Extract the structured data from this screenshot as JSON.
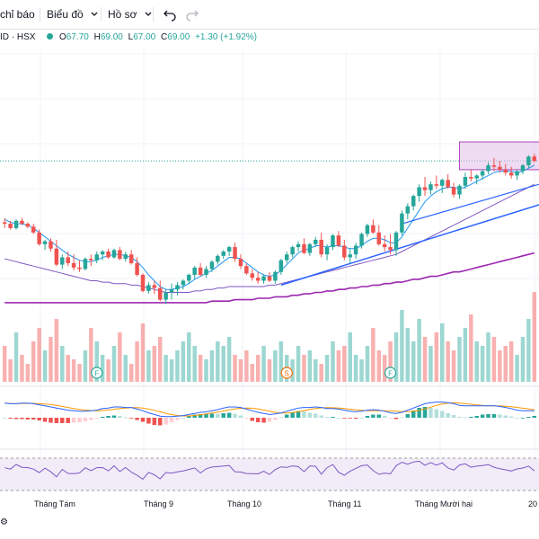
{
  "toolbar": {
    "indicators_label": "chỉ báo",
    "chart_template_label": "Biểu đồ",
    "profile_label": "Hồ sơ"
  },
  "legend": {
    "symbol": "ID · HSX",
    "open_label": "O",
    "open": "67.70",
    "high_label": "H",
    "high": "69.00",
    "low_label": "L",
    "low": "67.00",
    "close_label": "C",
    "close": "69.00",
    "change": "+1.30 (+1.92%)"
  },
  "colors": {
    "up": "#26a69a",
    "down": "#ef5350",
    "trendline": "#2962ff",
    "ma_fast": "#2196f3",
    "ma_slow": "#7e57c2",
    "ma_long": "#9c27b0",
    "macd_line": "#2962ff",
    "signal_line": "#ff9800",
    "rsi_line": "#7e57c2",
    "rsi_band": "#ede7f6"
  },
  "x_axis": [
    "Tháng Tám",
    "Tháng 9",
    "Tháng 10",
    "Tháng 11",
    "Tháng Mười hai",
    "20"
  ],
  "markers": [
    {
      "letter": "F",
      "color": "#26a69a"
    },
    {
      "letter": "S",
      "color": "#ff6d00"
    },
    {
      "letter": "F",
      "color": "#26a69a"
    }
  ],
  "chart_data": {
    "type": "candlestick",
    "candles": [
      [
        1.0,
        1.3,
        0.6,
        0.9
      ],
      [
        0.9,
        1.1,
        0.5,
        0.6
      ],
      [
        0.6,
        1.2,
        0.5,
        1.1
      ],
      [
        1.1,
        1.3,
        0.8,
        0.9
      ],
      [
        0.9,
        1.0,
        0.6,
        0.7
      ],
      [
        0.7,
        0.9,
        0.2,
        0.3
      ],
      [
        0.3,
        0.5,
        -0.6,
        -0.5
      ],
      [
        -0.5,
        -0.2,
        -0.9,
        -0.3
      ],
      [
        -0.3,
        -0.1,
        -1.0,
        -0.8
      ],
      [
        -0.8,
        -0.2,
        -2.0,
        -1.9
      ],
      [
        -1.9,
        -1.2,
        -2.2,
        -1.4
      ],
      [
        -1.4,
        -1.0,
        -2.0,
        -1.8
      ],
      [
        -1.8,
        -1.2,
        -2.3,
        -2.1
      ],
      [
        -2.1,
        -1.6,
        -2.4,
        -2.2
      ],
      [
        -2.2,
        -1.4,
        -2.3,
        -1.5
      ],
      [
        -1.5,
        -1.2,
        -2.0,
        -1.6
      ],
      [
        -1.6,
        -1.0,
        -1.8,
        -1.2
      ],
      [
        -1.2,
        -0.9,
        -1.6,
        -1.0
      ],
      [
        -1.0,
        -0.8,
        -1.5,
        -1.4
      ],
      [
        -1.4,
        -0.8,
        -1.5,
        -0.9
      ],
      [
        -0.9,
        -0.7,
        -1.6,
        -1.5
      ],
      [
        -1.5,
        -1.0,
        -1.7,
        -1.2
      ],
      [
        -1.2,
        -0.9,
        -1.9,
        -1.8
      ],
      [
        -1.8,
        -1.4,
        -2.7,
        -2.6
      ],
      [
        -2.6,
        -2.5,
        -3.8,
        -3.7
      ],
      [
        -3.7,
        -3.1,
        -3.9,
        -3.3
      ],
      [
        -3.3,
        -3.0,
        -3.9,
        -3.5
      ],
      [
        -3.5,
        -3.0,
        -4.4,
        -4.3
      ],
      [
        -4.3,
        -3.6,
        -4.6,
        -3.8
      ],
      [
        -3.8,
        -3.2,
        -4.3,
        -3.6
      ],
      [
        -3.6,
        -3.1,
        -4.0,
        -3.3
      ],
      [
        -3.3,
        -2.9,
        -3.6,
        -3.0
      ],
      [
        -3.0,
        -2.5,
        -3.2,
        -2.6
      ],
      [
        -2.6,
        -2.0,
        -2.9,
        -2.1
      ],
      [
        -2.1,
        -1.8,
        -2.7,
        -2.6
      ],
      [
        -2.6,
        -2.0,
        -2.8,
        -2.2
      ],
      [
        -2.2,
        -1.6,
        -2.4,
        -1.7
      ],
      [
        -1.7,
        -1.2,
        -1.9,
        -1.3
      ],
      [
        -1.3,
        -0.9,
        -1.5,
        -1.0
      ],
      [
        -1.0,
        -0.6,
        -1.3,
        -0.7
      ],
      [
        -0.7,
        -0.4,
        -1.7,
        -1.5
      ],
      [
        -1.5,
        -1.2,
        -2.2,
        -2.0
      ],
      [
        -2.0,
        -1.8,
        -2.6,
        -2.5
      ],
      [
        -2.5,
        -2.2,
        -3.0,
        -2.8
      ],
      [
        -2.8,
        -2.4,
        -3.2,
        -3.0
      ],
      [
        -3.0,
        -2.6,
        -3.2,
        -2.7
      ],
      [
        -2.7,
        -2.4,
        -3.1,
        -3.0
      ],
      [
        -3.0,
        -2.3,
        -3.2,
        -2.4
      ],
      [
        -2.4,
        -1.5,
        -2.6,
        -1.6
      ],
      [
        -1.6,
        -1.0,
        -1.8,
        -1.2
      ],
      [
        -1.2,
        -0.6,
        -1.4,
        -0.7
      ],
      [
        -0.7,
        -0.3,
        -1.0,
        -0.5
      ],
      [
        -0.5,
        -0.1,
        -1.2,
        -1.1
      ],
      [
        -1.1,
        -0.4,
        -1.3,
        -0.5
      ],
      [
        -0.5,
        0.0,
        -0.7,
        -0.2
      ],
      [
        -0.2,
        0.3,
        -1.4,
        -1.2
      ],
      [
        -1.2,
        -0.5,
        -1.6,
        -0.7
      ],
      [
        -0.7,
        0.2,
        -0.9,
        0.1
      ],
      [
        0.1,
        0.4,
        -0.7,
        -0.6
      ],
      [
        -0.6,
        -0.2,
        -1.6,
        -1.4
      ],
      [
        -1.4,
        -0.8,
        -1.8,
        -1.2
      ],
      [
        -1.2,
        -0.4,
        -1.5,
        -0.6
      ],
      [
        -0.6,
        0.3,
        -0.8,
        0.2
      ],
      [
        0.2,
        0.9,
        0.0,
        0.8
      ],
      [
        0.8,
        1.2,
        0.2,
        0.3
      ],
      [
        0.3,
        0.8,
        -0.6,
        -0.5
      ],
      [
        -0.5,
        0.1,
        -1.0,
        -0.7
      ],
      [
        -0.7,
        0.2,
        -1.2,
        -0.9
      ],
      [
        -0.9,
        0.4,
        -1.3,
        0.3
      ],
      [
        0.3,
        1.8,
        0.1,
        1.6
      ],
      [
        1.6,
        2.3,
        1.2,
        2.1
      ],
      [
        2.1,
        2.9,
        1.8,
        2.8
      ],
      [
        2.8,
        3.6,
        2.4,
        3.4
      ],
      [
        3.4,
        4.1,
        2.8,
        3.2
      ],
      [
        3.2,
        3.8,
        2.9,
        3.6
      ],
      [
        3.6,
        4.2,
        3.3,
        3.5
      ],
      [
        3.5,
        4.0,
        3.0,
        3.9
      ],
      [
        3.9,
        4.3,
        3.3,
        3.4
      ],
      [
        3.4,
        3.7,
        2.7,
        2.9
      ],
      [
        2.9,
        3.6,
        2.6,
        3.5
      ],
      [
        3.5,
        4.4,
        3.3,
        4.1
      ],
      [
        4.1,
        4.6,
        3.8,
        4.0
      ],
      [
        4.0,
        4.3,
        3.6,
        4.2
      ],
      [
        4.2,
        4.6,
        3.9,
        4.5
      ],
      [
        4.5,
        5.1,
        4.3,
        4.9
      ],
      [
        4.9,
        5.4,
        4.5,
        4.8
      ],
      [
        4.8,
        5.2,
        4.4,
        4.6
      ],
      [
        4.6,
        5.0,
        4.2,
        4.4
      ],
      [
        4.4,
        4.8,
        4.0,
        4.2
      ],
      [
        4.2,
        4.6,
        3.9,
        4.5
      ],
      [
        4.5,
        5.0,
        4.3,
        4.9
      ],
      [
        4.9,
        5.6,
        4.7,
        5.5
      ],
      [
        5.5,
        5.7,
        5.1,
        5.2
      ]
    ],
    "ma_fast": [
      1.2,
      1.0,
      0.9,
      0.9,
      0.8,
      0.6,
      0.3,
      0.0,
      -0.3,
      -0.6,
      -0.9,
      -1.2,
      -1.4,
      -1.6,
      -1.7,
      -1.7,
      -1.6,
      -1.4,
      -1.3,
      -1.2,
      -1.2,
      -1.3,
      -1.4,
      -1.7,
      -2.1,
      -2.6,
      -3.0,
      -3.4,
      -3.6,
      -3.6,
      -3.5,
      -3.4,
      -3.2,
      -2.9,
      -2.7,
      -2.5,
      -2.3,
      -2.0,
      -1.7,
      -1.4,
      -1.4,
      -1.5,
      -1.8,
      -2.1,
      -2.4,
      -2.6,
      -2.7,
      -2.6,
      -2.3,
      -1.9,
      -1.5,
      -1.1,
      -0.9,
      -0.8,
      -0.6,
      -0.6,
      -0.7,
      -0.6,
      -0.6,
      -0.7,
      -0.8,
      -0.8,
      -0.6,
      -0.3,
      -0.1,
      -0.1,
      -0.2,
      -0.4,
      -0.4,
      0.0,
      0.6,
      1.2,
      1.8,
      2.4,
      2.8,
      3.1,
      3.3,
      3.4,
      3.4,
      3.3,
      3.4,
      3.6,
      3.8,
      4.0,
      4.2,
      4.4,
      4.5,
      4.5,
      4.5,
      4.4,
      4.5,
      4.7,
      4.9
    ],
    "ma_slow": [
      -1.5,
      -1.6,
      -1.7,
      -1.8,
      -1.9,
      -2.0,
      -2.1,
      -2.2,
      -2.3,
      -2.4,
      -2.5,
      -2.6,
      -2.7,
      -2.8,
      -2.9,
      -3.0,
      -3.0,
      -3.1,
      -3.1,
      -3.2,
      -3.2,
      -3.2,
      -3.3,
      -3.3,
      -3.4,
      -3.5,
      -3.6,
      -3.7,
      -3.8,
      -3.8,
      -3.8,
      -3.8,
      -3.8,
      -3.7,
      -3.7,
      -3.6,
      -3.6,
      -3.5,
      -3.5,
      -3.4,
      -3.4,
      -3.4,
      -3.4,
      -3.4,
      -3.4,
      -3.4,
      -3.3,
      -3.3,
      -3.2,
      -3.1,
      -3.0,
      -2.9,
      -2.8,
      -2.7,
      -2.6,
      -2.5,
      -2.4,
      -2.3,
      -2.2,
      -2.1,
      -2.0,
      -1.9,
      -1.8,
      -1.7,
      -1.6,
      -1.5,
      -1.4,
      -1.3,
      -1.2,
      -1.0,
      -0.8,
      -0.6,
      -0.4,
      -0.2,
      0.0,
      0.2,
      0.4,
      0.6,
      0.8,
      1.0,
      1.2,
      1.4,
      1.6,
      1.8,
      2.0,
      2.2,
      2.4,
      2.6,
      2.8,
      3.0,
      3.2,
      3.4,
      3.6
    ],
    "ma_long": [
      -4.5,
      -4.5,
      -4.5,
      -4.5,
      -4.5,
      -4.5,
      -4.5,
      -4.5,
      -4.5,
      -4.5,
      -4.5,
      -4.5,
      -4.5,
      -4.5,
      -4.5,
      -4.5,
      -4.5,
      -4.5,
      -4.5,
      -4.5,
      -4.5,
      -4.5,
      -4.5,
      -4.5,
      -4.5,
      -4.5,
      -4.5,
      -4.5,
      -4.5,
      -4.5,
      -4.5,
      -4.5,
      -4.5,
      -4.5,
      -4.5,
      -4.5,
      -4.4,
      -4.4,
      -4.4,
      -4.4,
      -4.3,
      -4.3,
      -4.3,
      -4.3,
      -4.2,
      -4.2,
      -4.2,
      -4.1,
      -4.1,
      -4.1,
      -4.0,
      -4.0,
      -3.9,
      -3.9,
      -3.8,
      -3.8,
      -3.7,
      -3.7,
      -3.6,
      -3.6,
      -3.5,
      -3.5,
      -3.4,
      -3.4,
      -3.3,
      -3.3,
      -3.2,
      -3.2,
      -3.1,
      -3.1,
      -3.0,
      -2.9,
      -2.9,
      -2.8,
      -2.7,
      -2.7,
      -2.6,
      -2.5,
      -2.4,
      -2.4,
      -2.3,
      -2.2,
      -2.1,
      -2.0,
      -1.9,
      -1.8,
      -1.7,
      -1.6,
      -1.5,
      -1.4,
      -1.3,
      -1.2,
      -1.1
    ],
    "volume": [
      40,
      25,
      55,
      30,
      20,
      45,
      60,
      35,
      50,
      70,
      40,
      30,
      25,
      20,
      35,
      60,
      45,
      30,
      25,
      40,
      55,
      30,
      20,
      45,
      65,
      35,
      40,
      50,
      30,
      25,
      35,
      45,
      55,
      40,
      30,
      25,
      35,
      45,
      40,
      50,
      30,
      25,
      35,
      20,
      30,
      40,
      25,
      35,
      45,
      30,
      25,
      40,
      30,
      35,
      25,
      20,
      30,
      45,
      35,
      40,
      55,
      30,
      25,
      40,
      60,
      35,
      30,
      45,
      55,
      80,
      60,
      45,
      70,
      50,
      40,
      55,
      65,
      45,
      35,
      50,
      60,
      75,
      45,
      40,
      55,
      50,
      35,
      40,
      45,
      30,
      50,
      70,
      100
    ]
  }
}
